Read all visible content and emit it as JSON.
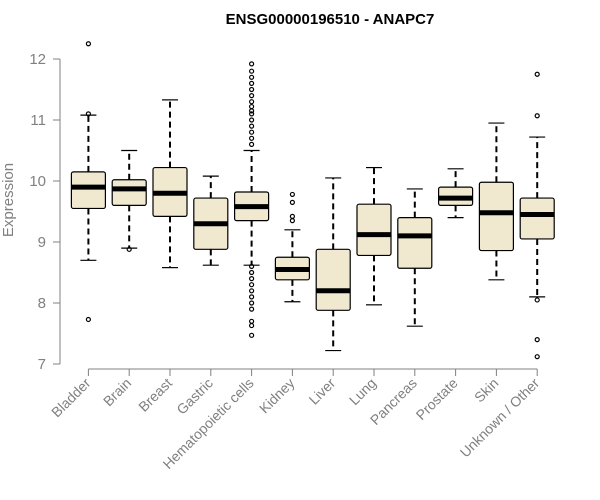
{
  "chart_data": {
    "type": "boxplot",
    "title": "ENSG00000196510 - ANAPC7",
    "xlabel": "",
    "ylabel": "Expression",
    "ylim": [
      7,
      12
    ],
    "yticks": [
      7,
      8,
      9,
      10,
      11,
      12
    ],
    "grid": false,
    "colors": {
      "box_fill": "#f0e9d0",
      "box_stroke": "#000000",
      "axis": "#808080"
    },
    "categories": [
      "Bladder",
      "Brain",
      "Breast",
      "Gastric",
      "Hematopoietic cells",
      "Kidney",
      "Liver",
      "Lung",
      "Pancreas",
      "Prostate",
      "Skin",
      "Unknown / Other"
    ],
    "boxes": [
      {
        "category": "Bladder",
        "whisker_low": 8.7,
        "q1": 9.55,
        "median": 9.9,
        "q3": 10.15,
        "whisker_high": 11.08,
        "outliers": [
          12.25,
          11.1,
          7.73
        ]
      },
      {
        "category": "Brain",
        "whisker_low": 8.9,
        "q1": 9.6,
        "median": 9.87,
        "q3": 10.02,
        "whisker_high": 10.5,
        "outliers": [
          8.88
        ]
      },
      {
        "category": "Breast",
        "whisker_low": 8.58,
        "q1": 9.42,
        "median": 9.8,
        "q3": 10.22,
        "whisker_high": 11.33,
        "outliers": []
      },
      {
        "category": "Gastric",
        "whisker_low": 8.62,
        "q1": 8.88,
        "median": 9.3,
        "q3": 9.72,
        "whisker_high": 10.08,
        "outliers": []
      },
      {
        "category": "Hematopoietic cells",
        "whisker_low": 8.62,
        "q1": 9.35,
        "median": 9.58,
        "q3": 9.82,
        "whisker_high": 10.5,
        "outliers": [
          11.92,
          11.8,
          11.7,
          11.6,
          11.5,
          11.4,
          11.3,
          11.22,
          11.15,
          11.1,
          11.0,
          10.9,
          10.8,
          10.7,
          10.6,
          8.6,
          8.5,
          8.4,
          8.3,
          8.2,
          8.1,
          8.0,
          7.9,
          7.7,
          7.63,
          7.47
        ]
      },
      {
        "category": "Kidney",
        "whisker_low": 8.02,
        "q1": 8.38,
        "median": 8.55,
        "q3": 8.75,
        "whisker_high": 9.2,
        "outliers": [
          9.78,
          9.65,
          9.42,
          9.35
        ]
      },
      {
        "category": "Liver",
        "whisker_low": 7.22,
        "q1": 7.88,
        "median": 8.2,
        "q3": 8.88,
        "whisker_high": 10.05,
        "outliers": []
      },
      {
        "category": "Lung",
        "whisker_low": 7.97,
        "q1": 8.78,
        "median": 9.12,
        "q3": 9.62,
        "whisker_high": 10.22,
        "outliers": []
      },
      {
        "category": "Pancreas",
        "whisker_low": 7.62,
        "q1": 8.57,
        "median": 9.1,
        "q3": 9.4,
        "whisker_high": 9.87,
        "outliers": []
      },
      {
        "category": "Prostate",
        "whisker_low": 9.4,
        "q1": 9.6,
        "median": 9.72,
        "q3": 9.9,
        "whisker_high": 10.2,
        "outliers": []
      },
      {
        "category": "Skin",
        "whisker_low": 8.38,
        "q1": 8.86,
        "median": 9.48,
        "q3": 9.98,
        "whisker_high": 10.95,
        "outliers": []
      },
      {
        "category": "Unknown / Other",
        "whisker_low": 8.1,
        "q1": 9.05,
        "median": 9.45,
        "q3": 9.72,
        "whisker_high": 10.72,
        "outliers": [
          11.75,
          11.07,
          8.05,
          7.4,
          7.12
        ]
      }
    ]
  }
}
